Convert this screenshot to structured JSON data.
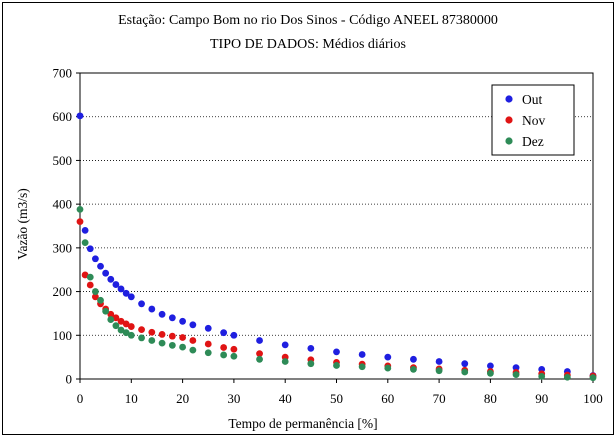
{
  "chart_data": {
    "type": "scatter",
    "title": "Estação: Campo Bom no rio Dos Sinos - Código ANEEL 87380000",
    "subtitle": "TIPO DE DADOS: Médios diários",
    "xlabel": "Tempo de permanência [%]",
    "ylabel": "Vazão (m3/s)",
    "xlim": [
      0,
      100
    ],
    "ylim": [
      0,
      700
    ],
    "xticks": [
      0,
      10,
      20,
      30,
      40,
      50,
      60,
      70,
      80,
      90,
      100
    ],
    "yticks": [
      0,
      100,
      200,
      300,
      400,
      500,
      600,
      700
    ],
    "grid": "horizontal dotted",
    "legend_position": "top-right",
    "series": [
      {
        "name": "Out",
        "color": "#1f1fe0",
        "x": [
          0,
          1,
          2,
          3,
          4,
          5,
          6,
          7,
          8,
          9,
          10,
          12,
          14,
          16,
          18,
          20,
          22,
          25,
          28,
          30,
          35,
          40,
          45,
          50,
          55,
          60,
          65,
          70,
          75,
          80,
          85,
          90,
          95,
          100
        ],
        "y": [
          602,
          340,
          298,
          275,
          258,
          242,
          228,
          216,
          206,
          196,
          188,
          172,
          160,
          148,
          140,
          132,
          124,
          116,
          106,
          100,
          88,
          78,
          70,
          62,
          56,
          50,
          45,
          40,
          35,
          30,
          26,
          22,
          17,
          8
        ]
      },
      {
        "name": "Nov",
        "color": "#e01414",
        "x": [
          0,
          1,
          2,
          3,
          4,
          5,
          6,
          7,
          8,
          9,
          10,
          12,
          14,
          16,
          18,
          20,
          22,
          25,
          28,
          30,
          35,
          40,
          45,
          50,
          55,
          60,
          65,
          70,
          75,
          80,
          85,
          90,
          95,
          100
        ],
        "y": [
          360,
          238,
          215,
          188,
          172,
          160,
          148,
          140,
          132,
          126,
          120,
          113,
          107,
          102,
          98,
          95,
          88,
          80,
          72,
          68,
          58,
          50,
          44,
          38,
          34,
          30,
          26,
          23,
          20,
          17,
          15,
          12,
          9,
          7
        ]
      },
      {
        "name": "Dez",
        "color": "#2e8b57",
        "x": [
          0,
          1,
          2,
          3,
          4,
          5,
          6,
          7,
          8,
          9,
          10,
          12,
          14,
          16,
          18,
          20,
          22,
          25,
          28,
          30,
          35,
          40,
          45,
          50,
          55,
          60,
          65,
          70,
          75,
          80,
          85,
          90,
          95,
          100
        ],
        "y": [
          388,
          312,
          233,
          200,
          180,
          155,
          136,
          122,
          112,
          106,
          100,
          94,
          88,
          82,
          77,
          73,
          66,
          60,
          55,
          52,
          45,
          40,
          35,
          31,
          28,
          25,
          22,
          19,
          16,
          13,
          10,
          6,
          4,
          3
        ]
      }
    ]
  }
}
